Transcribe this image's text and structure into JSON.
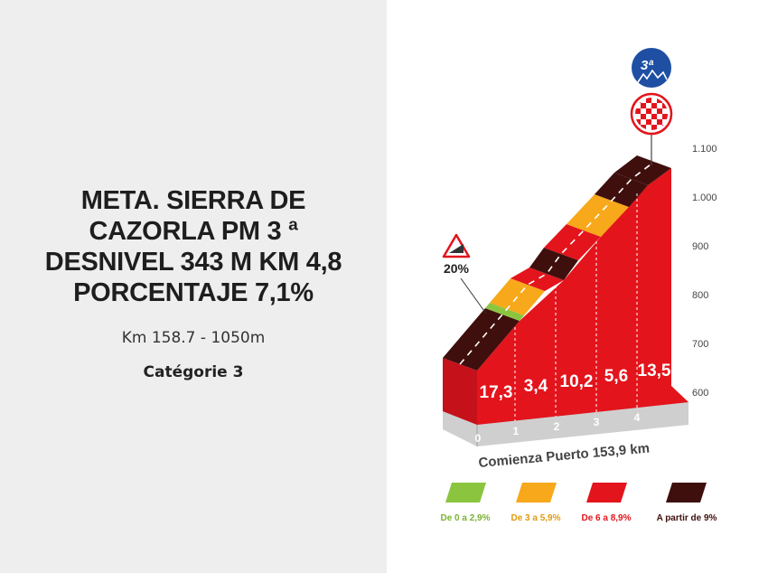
{
  "climb": {
    "title": "META. SIERRA DE CAZORLA PM 3 ª DESNIVEL 343 M KM 4,8 PORCENTAJE 7,1%",
    "subtitle": "Km 158.7 - 1050m",
    "category": "Catégorie 3"
  },
  "profile": {
    "category_badge": "3ª",
    "badge_icon": "mountain-icon",
    "finish_icon": "checkered-flag-icon",
    "max_slope_label": "20%",
    "max_slope_icon": "steep-slope-warning-icon",
    "start_label": "Comienza Puerto 153,9 km",
    "altitude_labels": [
      "1.100",
      "1.000",
      "900",
      "800",
      "700",
      "600"
    ],
    "km_labels": [
      "0",
      "1",
      "2",
      "3",
      "4"
    ],
    "segment_gradients": [
      "17,3",
      "3,4",
      "10,2",
      "5,6",
      "13,5"
    ],
    "colors": {
      "wall": "#e3141c",
      "green": "#8bc53f",
      "orange": "#f7a81b",
      "red": "#e3141c",
      "dark": "#3f0f0d",
      "badge": "#1f4fa3"
    }
  },
  "legend": [
    {
      "label": "De 0 a 2,9%",
      "color": "#8bc53f",
      "text_color": "#7bb234"
    },
    {
      "label": "De 3 a 5,9%",
      "color": "#f7a81b",
      "text_color": "#e09a10"
    },
    {
      "label": "De 6 a 8,9%",
      "color": "#e3141c",
      "text_color": "#e3141c"
    },
    {
      "label": "A partir de 9%",
      "color": "#3f0f0d",
      "text_color": "#3f0f0d"
    }
  ]
}
